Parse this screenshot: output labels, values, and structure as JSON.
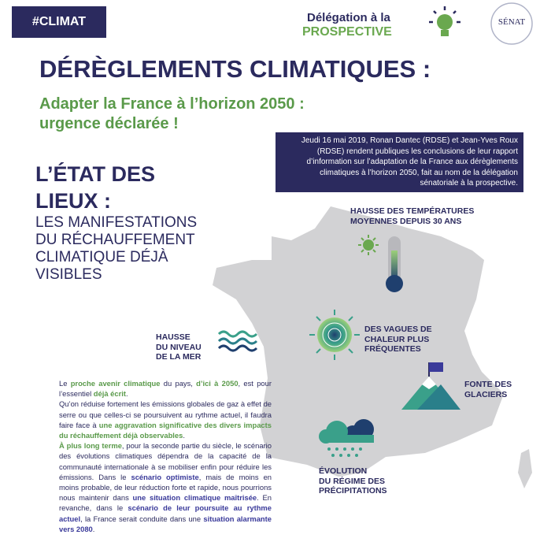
{
  "header": {
    "tag": "#CLIMAT",
    "delegation_line1": "Délégation à la",
    "delegation_line2": "PROSPECTIVE",
    "logo": "SÉNAT"
  },
  "title": "DÉRÈGLEMENTS CLIMATIQUES :",
  "subtitle": [
    "Adapter la France à l’horizon 2050 :",
    "urgence déclarée !"
  ],
  "notice": "Jeudi 16 mai 2019, Ronan Dantec (RDSE) et Jean-Yves Roux (RDSE) rendent publiques les conclusions de leur rapport d’information sur l’adaptation de la France aux dérèglements climatiques à l’horizon 2050, fait au nom de la délégation sénatoriale à la prospective.",
  "section": {
    "heading": [
      "L’ÉTAT DES",
      "LIEUX :"
    ],
    "subheading": [
      "LES MANIFESTATIONS",
      "DU RÉCHAUFFEMENT",
      "CLIMATIQUE DÉJÀ",
      "VISIBLES"
    ]
  },
  "map_labels": {
    "temperatures": [
      "HAUSSE DES TEMPÉRATURES",
      "MOYENNES DEPUIS 30 ANS"
    ],
    "heatwaves": [
      "DES VAGUES DE",
      "CHALEUR PLUS",
      "FRÉQUENTES"
    ],
    "sea_level": [
      "HAUSSE",
      "DU NIVEAU",
      "DE LA MER"
    ],
    "glaciers": [
      "FONTE DES",
      "GLACIERS"
    ],
    "precipitation": [
      "ÉVOLUTION",
      "DU RÉGIME DES",
      "PRÉCIPITATIONS"
    ]
  },
  "body": {
    "paragraphs": [
      {
        "runs": [
          {
            "text": "Le "
          },
          {
            "text": "proche avenir climatique",
            "emphasis": "green"
          },
          {
            "text": " du pays, "
          },
          {
            "text": "d’ici à 2050",
            "emphasis": "green"
          },
          {
            "text": ", est pour l’essentiel "
          },
          {
            "text": "déjà écrit",
            "emphasis": "green"
          },
          {
            "text": "."
          }
        ]
      },
      {
        "runs": [
          {
            "text": "Qu’on réduise fortement les émissions globales de gaz à effet de serre ou que celles-ci se poursuivent au rythme actuel, il faudra faire face à "
          },
          {
            "text": "une aggravation significative des divers impacts du réchauffement déjà observables",
            "emphasis": "green"
          },
          {
            "text": "."
          }
        ]
      },
      {
        "runs": [
          {
            "text": "À plus long terme",
            "emphasis": "green"
          },
          {
            "text": ", pour la seconde partie du siècle, le scénario des évolutions climatiques dépendra de la capacité de la communauté internationale à se mobiliser enfin pour réduire les émissions. Dans le "
          },
          {
            "text": "scénario optimiste",
            "emphasis": "navy"
          },
          {
            "text": ", mais de moins en moins probable, de leur réduction forte et rapide, nous pourrions nous maintenir dans "
          },
          {
            "text": "une situation climatique maîtrisée",
            "emphasis": "navy"
          },
          {
            "text": ". En revanche, dans le "
          },
          {
            "text": "scénario de leur poursuite au rythme actuel",
            "emphasis": "navy"
          },
          {
            "text": ", la France serait conduite dans une "
          },
          {
            "text": "situation alarmante vers 2080",
            "emphasis": "navy"
          },
          {
            "text": "."
          }
        ]
      }
    ]
  }
}
